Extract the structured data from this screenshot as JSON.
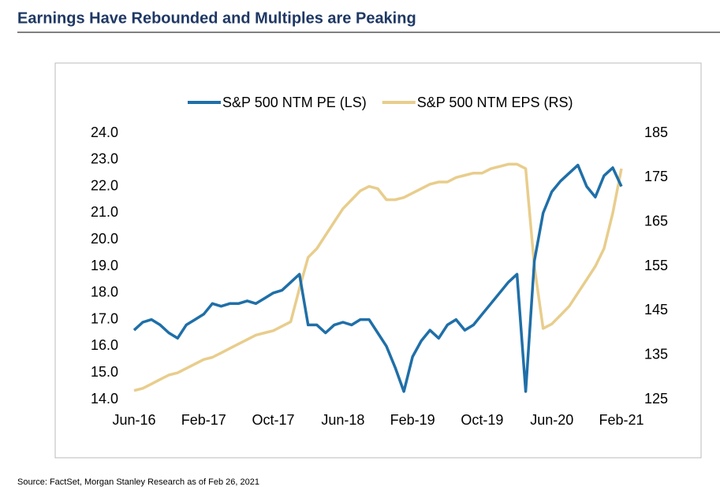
{
  "chart_data": {
    "type": "line",
    "title": "Earnings Have Rebounded and Multiples are Peaking",
    "source": "Source: FactSet, Morgan Stanley Research as of Feb 26, 2021",
    "categories": [
      "Jun-16",
      null,
      null,
      null,
      null,
      null,
      null,
      null,
      "Feb-17",
      null,
      null,
      null,
      null,
      null,
      null,
      null,
      "Oct-17",
      null,
      null,
      null,
      null,
      null,
      null,
      null,
      "Jun-18",
      null,
      null,
      null,
      null,
      null,
      null,
      null,
      "Feb-19",
      null,
      null,
      null,
      null,
      null,
      null,
      null,
      "Oct-19",
      null,
      null,
      null,
      null,
      null,
      null,
      null,
      "Jun-20",
      null,
      null,
      null,
      null,
      null,
      null,
      null,
      "Feb-21"
    ],
    "series": [
      {
        "name": "S&P 500 NTM PE (LS)",
        "color": "#1f6fa8",
        "axis": "y",
        "values": [
          16.6,
          16.9,
          17.0,
          16.8,
          16.5,
          16.3,
          16.8,
          17.0,
          17.2,
          17.6,
          17.5,
          17.6,
          17.6,
          17.7,
          17.6,
          17.8,
          18.0,
          18.1,
          18.4,
          18.7,
          16.8,
          16.8,
          16.5,
          16.8,
          16.9,
          16.8,
          17.0,
          17.0,
          16.5,
          16.0,
          15.2,
          14.3,
          15.6,
          16.2,
          16.6,
          16.3,
          16.8,
          17.0,
          16.6,
          16.8,
          17.2,
          17.6,
          18.0,
          18.4,
          18.7,
          14.3,
          19.2,
          21.0,
          21.8,
          22.2,
          22.5,
          22.8,
          22.0,
          21.6,
          22.4,
          22.7,
          22.0
        ]
      },
      {
        "name": "S&P 500 NTM EPS (RS)",
        "color": "#e8cd8c",
        "axis": "y2",
        "values": [
          127,
          127.5,
          128.5,
          129.5,
          130.5,
          131,
          132,
          133,
          134,
          134.5,
          135.5,
          136.5,
          137.5,
          138.5,
          139.5,
          140,
          140.5,
          141.5,
          142.5,
          150,
          157,
          159,
          162,
          165,
          168,
          170,
          172,
          173,
          172.5,
          170,
          170,
          170.5,
          171.5,
          172.5,
          173.5,
          174,
          174,
          175,
          175.5,
          176,
          176,
          177,
          177.5,
          178,
          178,
          177,
          155,
          141,
          142,
          144,
          146,
          149,
          152,
          155,
          159,
          167,
          177
        ]
      }
    ],
    "ylim": [
      14,
      24
    ],
    "yticks": [
      {
        "value": 14,
        "label": "14.0"
      },
      {
        "value": 15,
        "label": "15.0"
      },
      {
        "value": 16,
        "label": "16.0"
      },
      {
        "value": 17,
        "label": "17.0"
      },
      {
        "value": 18,
        "label": "18.0"
      },
      {
        "value": 19,
        "label": "19.0"
      },
      {
        "value": 20,
        "label": "20.0"
      },
      {
        "value": 21,
        "label": "21.0"
      },
      {
        "value": 22,
        "label": "22.0"
      },
      {
        "value": 23,
        "label": "23.0"
      },
      {
        "value": 24,
        "label": "24.0"
      }
    ],
    "y2lim": [
      125,
      185
    ],
    "y2ticks": [
      125,
      135,
      145,
      155,
      165,
      175,
      185
    ],
    "grid": false,
    "legend": "top"
  }
}
